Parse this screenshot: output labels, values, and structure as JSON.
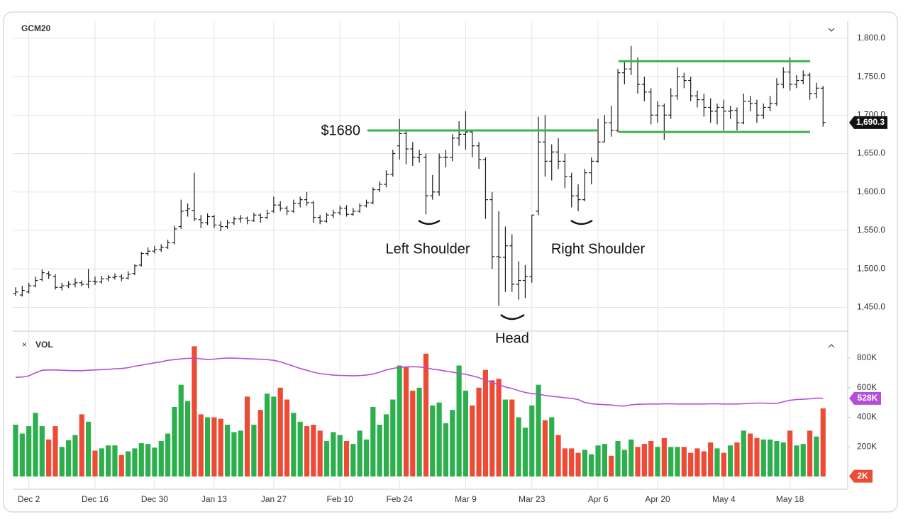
{
  "chart_data": [
    {
      "type": "ohlc",
      "title": "GCM20",
      "color": "#1a1a1a",
      "grid": true,
      "grid_color": "#e4e4e4",
      "categories": [
        null,
        null,
        "Dec 2",
        null,
        null,
        null,
        null,
        null,
        null,
        null,
        null,
        null,
        "Dec 16",
        null,
        null,
        null,
        null,
        null,
        null,
        null,
        null,
        "Dec 30",
        null,
        null,
        null,
        null,
        null,
        null,
        null,
        null,
        "Jan 13",
        null,
        null,
        null,
        null,
        null,
        null,
        null,
        null,
        "Jan 27",
        null,
        null,
        null,
        null,
        null,
        null,
        null,
        null,
        null,
        "Feb 10",
        null,
        null,
        null,
        null,
        null,
        null,
        null,
        null,
        "Feb 24",
        null,
        null,
        null,
        null,
        null,
        null,
        null,
        null,
        null,
        "Mar 9",
        null,
        null,
        null,
        null,
        null,
        null,
        null,
        null,
        null,
        "Mar 23",
        null,
        null,
        null,
        null,
        null,
        null,
        null,
        null,
        null,
        "Apr 6",
        null,
        null,
        null,
        null,
        null,
        null,
        null,
        null,
        "Apr 20",
        null,
        null,
        null,
        null,
        null,
        null,
        null,
        null,
        null,
        "May 4",
        null,
        null,
        null,
        null,
        null,
        null,
        null,
        null,
        null,
        "May 18",
        null,
        null,
        null,
        null,
        null
      ],
      "open": [
        1468,
        1466,
        1470,
        1478,
        1486,
        1494,
        1490,
        1476,
        1478,
        1480,
        1482,
        1480,
        1484,
        1483,
        1487,
        1489,
        1490,
        1488,
        1494,
        1505,
        1520,
        1523,
        1525,
        1528,
        1534,
        1555,
        1576,
        1576,
        1564,
        1560,
        1568,
        1557,
        1555,
        1560,
        1565,
        1566,
        1563,
        1570,
        1567,
        1575,
        1583,
        1579,
        1575,
        1585,
        1590,
        1586,
        1567,
        1562,
        1570,
        1573,
        1579,
        1571,
        1575,
        1582,
        1586,
        1603,
        1610,
        1623,
        1660,
        1676,
        1656,
        1645,
        1645,
        1595,
        1600,
        1645,
        1645,
        1670,
        1675,
        1678,
        1660,
        1642,
        1590,
        1516,
        1515,
        1530,
        1480,
        1485,
        1490,
        1575,
        1665,
        1640,
        1652,
        1640,
        1620,
        1595,
        1590,
        1625,
        1640,
        1665,
        1690,
        1680,
        1755,
        1760,
        1770,
        1740,
        1730,
        1700,
        1712,
        1700,
        1725,
        1750,
        1745,
        1725,
        1720,
        1710,
        1705,
        1710,
        1705,
        1706,
        1690,
        1718,
        1715,
        1700,
        1710,
        1715,
        1740,
        1756,
        1740,
        1745,
        1752,
        1728,
        1735
      ],
      "high": [
        1476,
        1478,
        1482,
        1490,
        1499,
        1497,
        1493,
        1482,
        1484,
        1488,
        1485,
        1500,
        1490,
        1491,
        1492,
        1494,
        1493,
        1497,
        1506,
        1522,
        1528,
        1530,
        1532,
        1538,
        1556,
        1590,
        1585,
        1625,
        1570,
        1572,
        1570,
        1562,
        1564,
        1568,
        1570,
        1568,
        1573,
        1572,
        1577,
        1594,
        1588,
        1582,
        1590,
        1594,
        1600,
        1588,
        1570,
        1573,
        1577,
        1582,
        1583,
        1579,
        1585,
        1590,
        1606,
        1614,
        1628,
        1655,
        1695,
        1680,
        1665,
        1655,
        1650,
        1622,
        1650,
        1655,
        1675,
        1692,
        1705,
        1680,
        1665,
        1645,
        1600,
        1575,
        1555,
        1545,
        1510,
        1505,
        1570,
        1698,
        1700,
        1662,
        1670,
        1650,
        1625,
        1610,
        1630,
        1645,
        1695,
        1700,
        1712,
        1760,
        1770,
        1790,
        1775,
        1750,
        1735,
        1718,
        1715,
        1735,
        1762,
        1755,
        1750,
        1732,
        1728,
        1722,
        1715,
        1720,
        1712,
        1710,
        1728,
        1725,
        1720,
        1715,
        1725,
        1748,
        1762,
        1775,
        1752,
        1758,
        1755,
        1742,
        1738
      ],
      "low": [
        1465,
        1464,
        1468,
        1476,
        1484,
        1487,
        1473,
        1472,
        1475,
        1476,
        1477,
        1475,
        1479,
        1481,
        1484,
        1486,
        1484,
        1486,
        1492,
        1503,
        1517,
        1520,
        1522,
        1526,
        1532,
        1552,
        1568,
        1562,
        1553,
        1557,
        1553,
        1549,
        1552,
        1557,
        1560,
        1558,
        1561,
        1560,
        1565,
        1573,
        1575,
        1570,
        1573,
        1580,
        1582,
        1560,
        1558,
        1560,
        1566,
        1570,
        1568,
        1569,
        1573,
        1580,
        1584,
        1600,
        1606,
        1620,
        1642,
        1636,
        1634,
        1638,
        1571,
        1590,
        1595,
        1632,
        1640,
        1660,
        1655,
        1645,
        1630,
        1565,
        1500,
        1452,
        1470,
        1470,
        1460,
        1462,
        1482,
        1570,
        1620,
        1615,
        1630,
        1605,
        1580,
        1575,
        1588,
        1610,
        1638,
        1665,
        1672,
        1678,
        1740,
        1752,
        1728,
        1718,
        1688,
        1690,
        1668,
        1695,
        1720,
        1735,
        1718,
        1710,
        1698,
        1690,
        1688,
        1680,
        1695,
        1680,
        1688,
        1705,
        1690,
        1695,
        1705,
        1712,
        1735,
        1732,
        1735,
        1740,
        1720,
        1722,
        1685
      ],
      "close": [
        1470,
        1472,
        1478,
        1485,
        1495,
        1492,
        1476,
        1478,
        1480,
        1482,
        1480,
        1484,
        1483,
        1487,
        1489,
        1490,
        1488,
        1493,
        1504,
        1520,
        1523,
        1525,
        1528,
        1534,
        1552,
        1575,
        1578,
        1565,
        1560,
        1568,
        1557,
        1555,
        1560,
        1565,
        1566,
        1563,
        1570,
        1567,
        1572,
        1583,
        1579,
        1575,
        1585,
        1590,
        1586,
        1567,
        1562,
        1570,
        1573,
        1579,
        1571,
        1575,
        1582,
        1586,
        1603,
        1610,
        1623,
        1650,
        1676,
        1656,
        1645,
        1649,
        1595,
        1600,
        1645,
        1645,
        1670,
        1675,
        1678,
        1660,
        1642,
        1590,
        1516,
        1515,
        1530,
        1480,
        1485,
        1490,
        1570,
        1665,
        1640,
        1652,
        1640,
        1620,
        1595,
        1590,
        1625,
        1640,
        1665,
        1690,
        1680,
        1755,
        1760,
        1770,
        1740,
        1730,
        1700,
        1712,
        1700,
        1725,
        1750,
        1745,
        1725,
        1720,
        1710,
        1705,
        1710,
        1705,
        1706,
        1690,
        1718,
        1715,
        1700,
        1710,
        1715,
        1740,
        1756,
        1740,
        1745,
        1752,
        1728,
        1735,
        1690.3
      ],
      "ylim": [
        1420,
        1822
      ],
      "yticks": [
        {
          "value": 1450,
          "label": "1,450.0"
        },
        {
          "value": 1500,
          "label": "1,500.0"
        },
        {
          "value": 1550,
          "label": "1,550.0"
        },
        {
          "value": 1600,
          "label": "1,600.0"
        },
        {
          "value": 1650,
          "label": "1,650.0"
        },
        {
          "value": 1700,
          "label": "1,700.0"
        },
        {
          "value": 1750,
          "label": "1,750.0"
        },
        {
          "value": 1800,
          "label": "1,800.0"
        }
      ],
      "last_price": {
        "value": 1690.3,
        "label": "1,690.3"
      },
      "levels": {
        "color": "#3fb34f",
        "values": [
          1680,
          1770,
          1678
        ]
      },
      "annotations": [
        "$1680",
        "Left Shoulder",
        "Head",
        "Right Shoulder"
      ]
    },
    {
      "type": "bar",
      "title": "VOL",
      "up_color": "#2eaf4e",
      "down_color": "#ec4b36",
      "values": [
        350000,
        290000,
        340000,
        430000,
        340000,
        250000,
        340000,
        200000,
        245000,
        280000,
        420000,
        370000,
        175000,
        190000,
        210000,
        210000,
        145000,
        170000,
        190000,
        225000,
        220000,
        195000,
        240000,
        290000,
        470000,
        620000,
        510000,
        880000,
        420000,
        400000,
        400000,
        390000,
        350000,
        300000,
        310000,
        540000,
        350000,
        450000,
        560000,
        540000,
        600000,
        520000,
        430000,
        370000,
        340000,
        350000,
        310000,
        240000,
        300000,
        280000,
        240000,
        220000,
        310000,
        250000,
        470000,
        350000,
        420000,
        520000,
        750000,
        740000,
        580000,
        600000,
        830000,
        480000,
        500000,
        360000,
        450000,
        750000,
        580000,
        480000,
        600000,
        720000,
        650000,
        660000,
        520000,
        520000,
        400000,
        330000,
        480000,
        620000,
        380000,
        400000,
        280000,
        190000,
        190000,
        160000,
        180000,
        150000,
        210000,
        220000,
        140000,
        240000,
        180000,
        250000,
        200000,
        220000,
        240000,
        200000,
        260000,
        200000,
        200000,
        200000,
        160000,
        190000,
        170000,
        230000,
        190000,
        160000,
        210000,
        230000,
        310000,
        290000,
        260000,
        250000,
        250000,
        240000,
        230000,
        310000,
        210000,
        220000,
        310000,
        270000,
        460000
      ],
      "ma": {
        "color": "#b44fd6",
        "values": [
          670000,
          672000,
          680000,
          700000,
          718000,
          720000,
          720000,
          718000,
          716000,
          715000,
          715000,
          718000,
          720000,
          722000,
          724000,
          728000,
          730000,
          735000,
          745000,
          752000,
          760000,
          768000,
          775000,
          785000,
          790000,
          795000,
          798000,
          800000,
          795000,
          790000,
          793000,
          798000,
          800000,
          800000,
          798000,
          796000,
          794000,
          792000,
          790000,
          785000,
          775000,
          760000,
          745000,
          730000,
          718000,
          705000,
          695000,
          690000,
          685000,
          683000,
          682000,
          680000,
          682000,
          686000,
          692000,
          705000,
          720000,
          730000,
          738000,
          740000,
          742000,
          740000,
          735000,
          725000,
          720000,
          712000,
          705000,
          698000,
          690000,
          680000,
          668000,
          650000,
          635000,
          620000,
          605000,
          595000,
          580000,
          568000,
          560000,
          556000,
          548000,
          542000,
          538000,
          532000,
          528000,
          520000,
          500000,
          492000,
          488000,
          485000,
          483000,
          478000,
          476000,
          484000,
          488000,
          489000,
          490000,
          490000,
          491000,
          491000,
          490000,
          490000,
          490000,
          490000,
          490000,
          491000,
          491000,
          490000,
          490000,
          490000,
          492000,
          494000,
          496000,
          496000,
          494000,
          493000,
          505000,
          515000,
          520000,
          522000,
          525000,
          530000,
          528000
        ]
      },
      "ma_tag": {
        "value": 528000,
        "label": "528K"
      },
      "last_volume": {
        "value": 2000,
        "label": "2K"
      },
      "ylim": [
        -86000,
        968000
      ],
      "yticks": [
        {
          "value": 200000,
          "label": "200K"
        },
        {
          "value": 400000,
          "label": "400K"
        },
        {
          "value": 600000,
          "label": "600K"
        },
        {
          "value": 800000,
          "label": "800K"
        }
      ]
    }
  ]
}
